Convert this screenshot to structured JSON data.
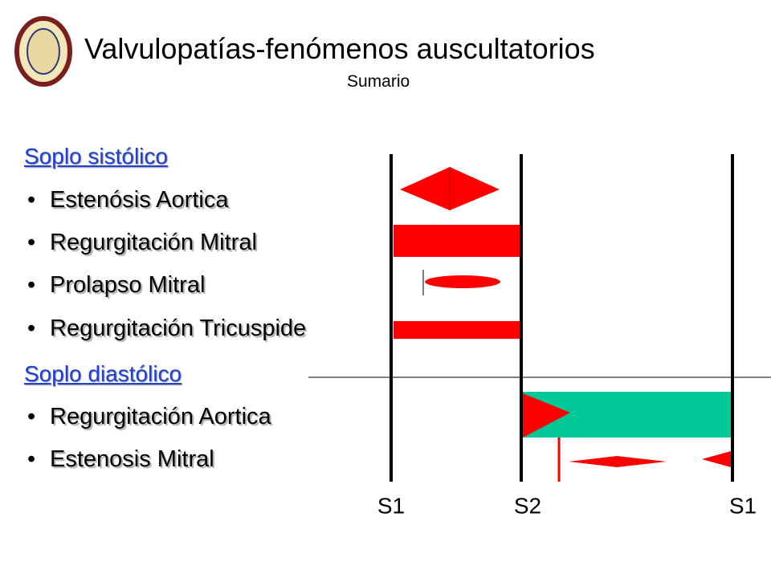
{
  "header": {
    "title": "Valvulopatías-fenómenos auscultatorios",
    "subtitle": "Sumario"
  },
  "sections": [
    {
      "heading": "Soplo sistólico",
      "items": [
        "Estenósis Aortica",
        "Regurgitación Mitral",
        "Prolapso Mitral",
        "Regurgitación Tricuspide"
      ]
    },
    {
      "heading": "Soplo diastólico",
      "items": [
        "Regurgitación Aortica",
        "Estenosis Mitral"
      ]
    }
  ],
  "diagram": {
    "labels": [
      "S1",
      "S2",
      "S1"
    ]
  }
}
